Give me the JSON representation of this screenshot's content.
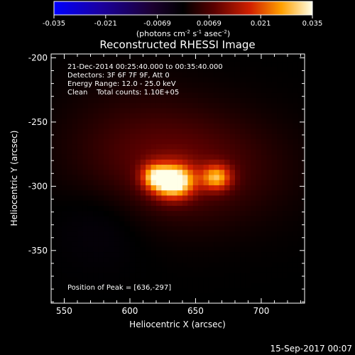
{
  "chart_data": {
    "type": "heatmap",
    "title": "Reconstructed RHESSI Image",
    "xlabel": "Heliocentric X (arcsec)",
    "ylabel": "Heliocentric Y (arcsec)",
    "xlim": [
      540,
      733
    ],
    "ylim": [
      -391,
      -197
    ],
    "x_ticks": [
      550,
      600,
      650,
      700
    ],
    "y_ticks": [
      -200,
      -250,
      -300,
      -350
    ],
    "colorbar": {
      "colormap": "hot",
      "range": [
        -0.035,
        0.035
      ],
      "ticks": [
        "-0.035",
        "-0.021",
        "-0.0069",
        "0.0069",
        "0.021",
        "0.035"
      ],
      "label_base": "(photons cm",
      "label_exp1": "-2",
      "label_mid": " s",
      "label_exp2": "-1",
      "label_tail": " asec",
      "label_exp3": "-2",
      "label_close": ")"
    },
    "annotations": [
      "21-Dec-2014 00:25:40.000 to 00:35:40.000",
      "Detectors: 3F 6F 7F 9F, Att 0",
      "Energy Range: 12.0 - 25.0 keV",
      "Clean    Total counts: 1.10E+05"
    ],
    "peak_label": "Position of Peak = [636,-297]",
    "sources": [
      {
        "x": 633,
        "y": -296,
        "sx": 11,
        "sy": 9,
        "amp": 0.035
      },
      {
        "x": 618,
        "y": -292,
        "sx": 7,
        "sy": 7,
        "amp": 0.016
      },
      {
        "x": 666,
        "y": -293,
        "sx": 8,
        "sy": 7,
        "amp": 0.022
      },
      {
        "x": 645,
        "y": -285,
        "sx": 48,
        "sy": 30,
        "amp": 0.008
      },
      {
        "x": 600,
        "y": -265,
        "sx": 40,
        "sy": 35,
        "amp": 0.003
      }
    ],
    "footer_date": "15-Sep-2017 00:07"
  }
}
